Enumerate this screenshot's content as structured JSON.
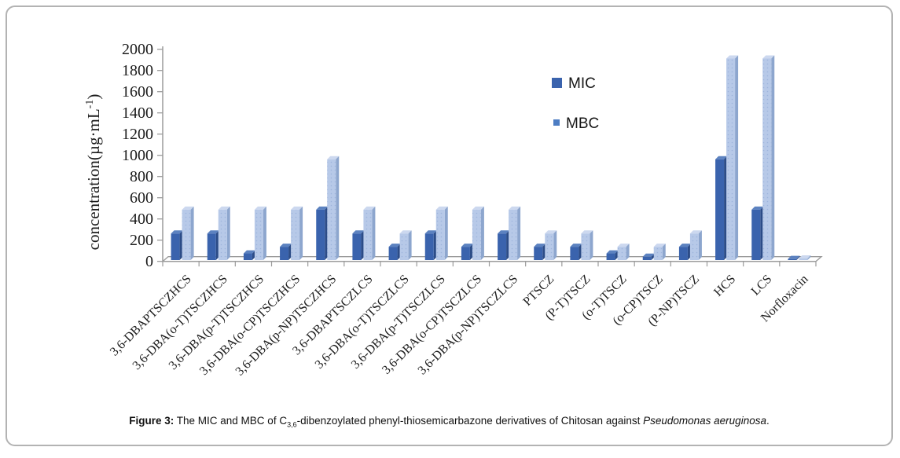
{
  "figure": {
    "caption": {
      "label": "Figure 3:",
      "pre": " The MIC and MBC of C",
      "subscript": "3,6",
      "mid": "-dibenzoylated phenyl-thiosemicarbazone derivatives of Chitosan against ",
      "species": "Pseudomonas aeruginosa",
      "end": "."
    }
  },
  "chart_data": {
    "type": "bar",
    "style": "3d-clustered-column",
    "title": "",
    "xlabel": "",
    "ylabel": "concentration(µg·mL⁻¹)",
    "ylabel_parts": {
      "main": "concentration(µg·mL",
      "sup": "-1",
      "close": ")"
    },
    "ylim": [
      0,
      2000
    ],
    "ytick_step": 200,
    "grid": false,
    "legend_position": "inside-top-right",
    "categories": [
      "3,6-DBAPTSCZHCS",
      "3,6-DBA(o-T)TSCZHCS",
      "3,6-DBA(p-T)TSCZHCS",
      "3,6-DBA(o-CP)TSCZHCS",
      "3,6-DBA(p-NP)TSCZHCS",
      "3,6-DBAPTSCZLCS",
      "3,6-DBA(o-T)TSCZLCS",
      "3,6-DBA(p-T)TSCZLCS",
      "3,6-DBA(o-CP)TSCZLCS",
      "3,6-DBA(p-NP)TSCZLCS",
      "PTSCZ",
      "(P-T)TSCZ",
      "(o-T)TSCZ",
      "(o-CP)TSCZ",
      "(P-NP)TSCZ",
      "HCS",
      "LCS",
      "Norfloxacin"
    ],
    "series": [
      {
        "name": "MIC",
        "color": "#3a63ad",
        "side_color": "#2c4c87",
        "cap_color": "#5c82c0",
        "legend_color": "#3a63ad",
        "values": [
          250,
          250,
          62.5,
          125,
          475,
          250,
          125,
          250,
          125,
          250,
          125,
          125,
          62.5,
          31.25,
          125,
          950,
          475,
          10
        ]
      },
      {
        "name": "MBC",
        "color": "#b7c9e8",
        "side_color": "#8da6ce",
        "cap_color": "#ccd8ef",
        "dot_color": "#9db4dc",
        "legend_color": "#4d7dc3",
        "values": [
          475,
          475,
          475,
          475,
          950,
          475,
          250,
          475,
          475,
          475,
          250,
          250,
          125,
          125,
          250,
          1900,
          1900,
          15
        ]
      }
    ],
    "axis_color": "#9b9b9b"
  }
}
